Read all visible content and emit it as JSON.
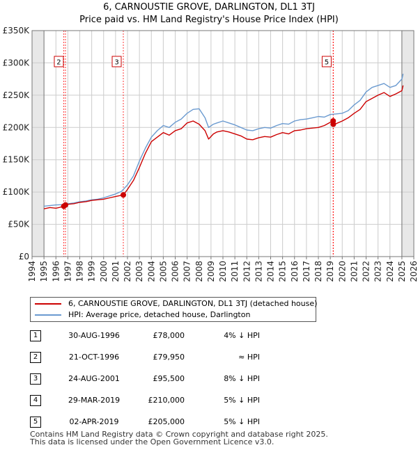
{
  "chart_data": {
    "type": "line",
    "title": "6, CARNOUSTIE GROVE, DARLINGTON, DL1 3TJ",
    "subtitle": "Price paid vs. HM Land Registry's House Price Index (HPI)",
    "x_ticks": [
      "1994",
      "1995",
      "1996",
      "1997",
      "1998",
      "1999",
      "2000",
      "2001",
      "2002",
      "2003",
      "2004",
      "2005",
      "2006",
      "2007",
      "2008",
      "2009",
      "2010",
      "2011",
      "2012",
      "2013",
      "2014",
      "2015",
      "2016",
      "2017",
      "2018",
      "2019",
      "2020",
      "2021",
      "2022",
      "2023",
      "2024",
      "2025",
      "2026"
    ],
    "y_ticks": [
      "£0",
      "£50K",
      "£100K",
      "£150K",
      "£200K",
      "£250K",
      "£300K",
      "£350K"
    ],
    "xlim": [
      1994,
      2026
    ],
    "ylim": [
      0,
      350000
    ],
    "grid": true,
    "legend_position": "below chart",
    "series": [
      {
        "name": "6, CARNOUSTIE GROVE, DARLINGTON, DL1 3TJ (detached house)",
        "color": "#cc0000",
        "x": [
          1995.0,
          1995.5,
          1996.0,
          1996.5,
          1996.66,
          1996.8,
          1997.0,
          1997.5,
          1998.0,
          1998.5,
          1999.0,
          1999.5,
          2000.0,
          2000.5,
          2001.0,
          2001.5,
          2001.65,
          2002.0,
          2002.5,
          2003.0,
          2003.5,
          2004.0,
          2004.5,
          2005.0,
          2005.5,
          2006.0,
          2006.5,
          2007.0,
          2007.5,
          2008.0,
          2008.5,
          2008.8,
          2009.2,
          2009.5,
          2010.0,
          2010.5,
          2011.0,
          2011.5,
          2012.0,
          2012.5,
          2013.0,
          2013.5,
          2014.0,
          2014.5,
          2015.0,
          2015.5,
          2016.0,
          2016.5,
          2017.0,
          2017.5,
          2018.0,
          2018.5,
          2019.0,
          2019.24,
          2019.25,
          2019.5,
          2020.0,
          2020.5,
          2021.0,
          2021.5,
          2022.0,
          2022.5,
          2023.0,
          2023.5,
          2024.0,
          2024.5,
          2025.0,
          2025.1
        ],
        "values": [
          74000,
          76000,
          75000,
          77000,
          78000,
          79950,
          81000,
          82000,
          84000,
          85000,
          87000,
          88000,
          89000,
          91000,
          93000,
          95000,
          95500,
          104000,
          118000,
          138000,
          160000,
          178000,
          185000,
          192000,
          188000,
          195000,
          198000,
          207000,
          210000,
          205000,
          195000,
          182000,
          190000,
          193000,
          195000,
          193000,
          190000,
          187000,
          182000,
          181000,
          184000,
          186000,
          185000,
          189000,
          192000,
          190000,
          195000,
          196000,
          198000,
          199000,
          200000,
          203000,
          208000,
          210000,
          205000,
          206000,
          210000,
          215000,
          222000,
          228000,
          240000,
          245000,
          250000,
          254000,
          248000,
          252000,
          257000,
          265000
        ]
      },
      {
        "name": "HPI: Average price, detached house, Darlington",
        "color": "#6a9ad0",
        "x": [
          1995.0,
          1995.5,
          1996.0,
          1996.5,
          1997.0,
          1997.5,
          1998.0,
          1998.5,
          1999.0,
          1999.5,
          2000.0,
          2000.5,
          2001.0,
          2001.5,
          2002.0,
          2002.5,
          2003.0,
          2003.5,
          2004.0,
          2004.5,
          2005.0,
          2005.5,
          2006.0,
          2006.5,
          2007.0,
          2007.5,
          2008.0,
          2008.5,
          2008.8,
          2009.2,
          2009.5,
          2010.0,
          2010.5,
          2011.0,
          2011.5,
          2012.0,
          2012.5,
          2013.0,
          2013.5,
          2014.0,
          2014.5,
          2015.0,
          2015.5,
          2016.0,
          2016.5,
          2017.0,
          2017.5,
          2018.0,
          2018.5,
          2019.0,
          2019.5,
          2020.0,
          2020.5,
          2021.0,
          2021.5,
          2022.0,
          2022.5,
          2023.0,
          2023.5,
          2024.0,
          2024.5,
          2025.0,
          2025.1
        ],
        "values": [
          78000,
          79000,
          80000,
          80500,
          82000,
          83000,
          85000,
          86000,
          88000,
          89000,
          91000,
          94000,
          97000,
          101000,
          111000,
          125000,
          148000,
          168000,
          185000,
          195000,
          203000,
          200000,
          208000,
          213000,
          222000,
          228000,
          229000,
          215000,
          200000,
          205000,
          207000,
          210000,
          207000,
          204000,
          200000,
          196000,
          195000,
          198000,
          200000,
          199000,
          203000,
          206000,
          205000,
          210000,
          212000,
          213000,
          215000,
          217000,
          216000,
          220000,
          221000,
          222000,
          226000,
          235000,
          242000,
          255000,
          262000,
          265000,
          268000,
          262000,
          265000,
          275000,
          283000
        ]
      }
    ],
    "markers": [
      {
        "label": "1",
        "x": 1996.66,
        "y": 78000,
        "line_color": "#ff0000",
        "box_shown": false
      },
      {
        "label": "2",
        "x": 1996.8,
        "y": 79950,
        "line_color": "#ff0000",
        "box_shown": true
      },
      {
        "label": "3",
        "x": 2001.65,
        "y": 95500,
        "line_color": "#ff0000",
        "box_shown": true
      },
      {
        "label": "4",
        "x": 2019.24,
        "y": 210000,
        "line_color": "#ff0000",
        "box_shown": false
      },
      {
        "label": "5",
        "x": 2019.25,
        "y": 205000,
        "line_color": "#ff0000",
        "box_shown": true
      }
    ],
    "shaded_ranges": [
      [
        1994,
        1995
      ],
      [
        2025,
        2026
      ]
    ],
    "colors": {
      "shade": "#e8e8e8",
      "grid": "#cccccc",
      "axis_text": "#222222"
    }
  },
  "legend": {
    "property_label": "6, CARNOUSTIE GROVE, DARLINGTON, DL1 3TJ (detached house)",
    "hpi_label": "HPI: Average price, detached house, Darlington"
  },
  "sales": [
    {
      "num": "1",
      "date": "30-AUG-1996",
      "price": "£78,000",
      "hpi": "4% ↓ HPI"
    },
    {
      "num": "2",
      "date": "21-OCT-1996",
      "price": "£79,950",
      "hpi": "≈ HPI"
    },
    {
      "num": "3",
      "date": "24-AUG-2001",
      "price": "£95,500",
      "hpi": "8% ↓ HPI"
    },
    {
      "num": "4",
      "date": "29-MAR-2019",
      "price": "£210,000",
      "hpi": "5% ↓ HPI"
    },
    {
      "num": "5",
      "date": "02-APR-2019",
      "price": "£205,000",
      "hpi": "5% ↓ HPI"
    }
  ],
  "footer": {
    "line1": "Contains HM Land Registry data © Crown copyright and database right 2025.",
    "line2": "This data is licensed under the Open Government Licence v3.0."
  }
}
